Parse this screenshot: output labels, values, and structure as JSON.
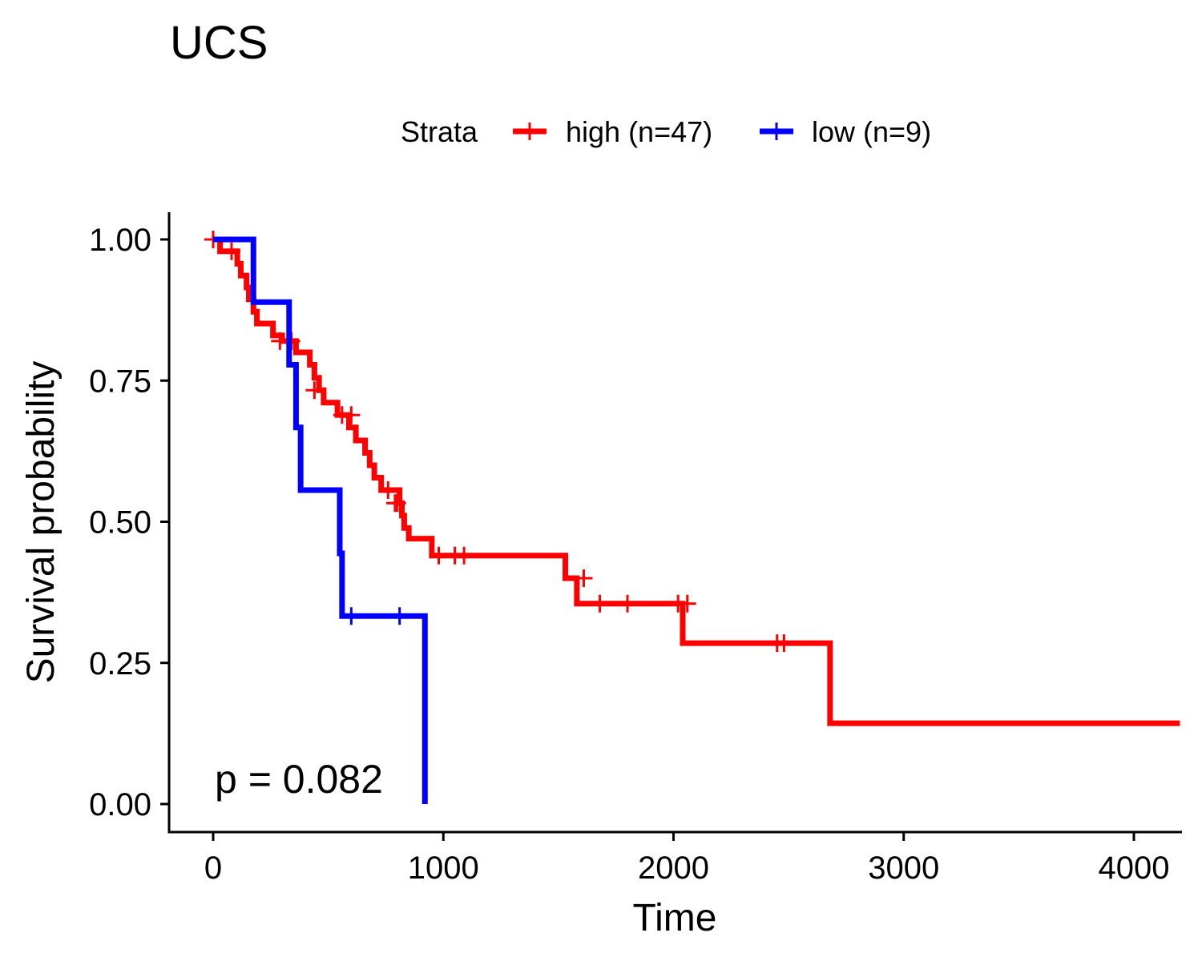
{
  "chart_data": {
    "type": "line",
    "subtype": "kaplan-meier",
    "title": "UCS",
    "xlabel": "Time",
    "ylabel": "Survival probability",
    "xlim": [
      -190,
      4200
    ],
    "ylim": [
      -0.05,
      1.05
    ],
    "xticks": [
      0,
      1000,
      2000,
      3000,
      4000
    ],
    "xtick_labels": [
      "0",
      "1000",
      "2000",
      "3000",
      "4000"
    ],
    "yticks": [
      0,
      0.25,
      0.5,
      0.75,
      1.0
    ],
    "ytick_labels": [
      "0.00",
      "0.25",
      "0.50",
      "0.75",
      "1.00"
    ],
    "grid": false,
    "legend": {
      "position": "top",
      "title": "Strata",
      "entries": [
        {
          "label": "high (n=47)",
          "color": "#ff0000"
        },
        {
          "label": "low (n=9)",
          "color": "#0000ff"
        }
      ]
    },
    "annotation": {
      "text": "p = 0.082",
      "x": 0,
      "y": 0.04
    },
    "series": [
      {
        "legend_label": "high (n=47)",
        "color": "#ff0000",
        "steps": [
          [
            0,
            1.0
          ],
          [
            30,
            0.979
          ],
          [
            105,
            0.957
          ],
          [
            120,
            0.936
          ],
          [
            145,
            0.915
          ],
          [
            155,
            0.894
          ],
          [
            175,
            0.872
          ],
          [
            190,
            0.851
          ],
          [
            260,
            0.83
          ],
          [
            300,
            0.82
          ],
          [
            360,
            0.8
          ],
          [
            420,
            0.778
          ],
          [
            440,
            0.755
          ],
          [
            460,
            0.733
          ],
          [
            480,
            0.711
          ],
          [
            540,
            0.689
          ],
          [
            590,
            0.667
          ],
          [
            620,
            0.644
          ],
          [
            660,
            0.622
          ],
          [
            680,
            0.6
          ],
          [
            700,
            0.578
          ],
          [
            730,
            0.556
          ],
          [
            810,
            0.533
          ],
          [
            820,
            0.511
          ],
          [
            830,
            0.489
          ],
          [
            850,
            0.47
          ],
          [
            950,
            0.44
          ],
          [
            1530,
            0.4
          ],
          [
            1580,
            0.355
          ],
          [
            2040,
            0.285
          ],
          [
            2680,
            0.143
          ],
          [
            4200,
            0.143
          ]
        ],
        "censor": [
          [
            0,
            1.0
          ],
          [
            80,
            0.979
          ],
          [
            290,
            0.82
          ],
          [
            340,
            0.82
          ],
          [
            440,
            0.733
          ],
          [
            560,
            0.689
          ],
          [
            600,
            0.689
          ],
          [
            760,
            0.556
          ],
          [
            790,
            0.533
          ],
          [
            800,
            0.533
          ],
          [
            980,
            0.44
          ],
          [
            1050,
            0.44
          ],
          [
            1090,
            0.44
          ],
          [
            1610,
            0.4
          ],
          [
            1680,
            0.355
          ],
          [
            1800,
            0.355
          ],
          [
            2020,
            0.355
          ],
          [
            2060,
            0.355
          ],
          [
            2450,
            0.285
          ],
          [
            2480,
            0.285
          ]
        ]
      },
      {
        "legend_label": "low (n=9)",
        "color": "#0000ff",
        "steps": [
          [
            0,
            1.0
          ],
          [
            175,
            0.889
          ],
          [
            330,
            0.778
          ],
          [
            360,
            0.667
          ],
          [
            380,
            0.556
          ],
          [
            550,
            0.444
          ],
          [
            560,
            0.333
          ],
          [
            920,
            0.0
          ]
        ],
        "censor": [
          [
            600,
            0.333
          ],
          [
            810,
            0.333
          ]
        ]
      }
    ]
  }
}
